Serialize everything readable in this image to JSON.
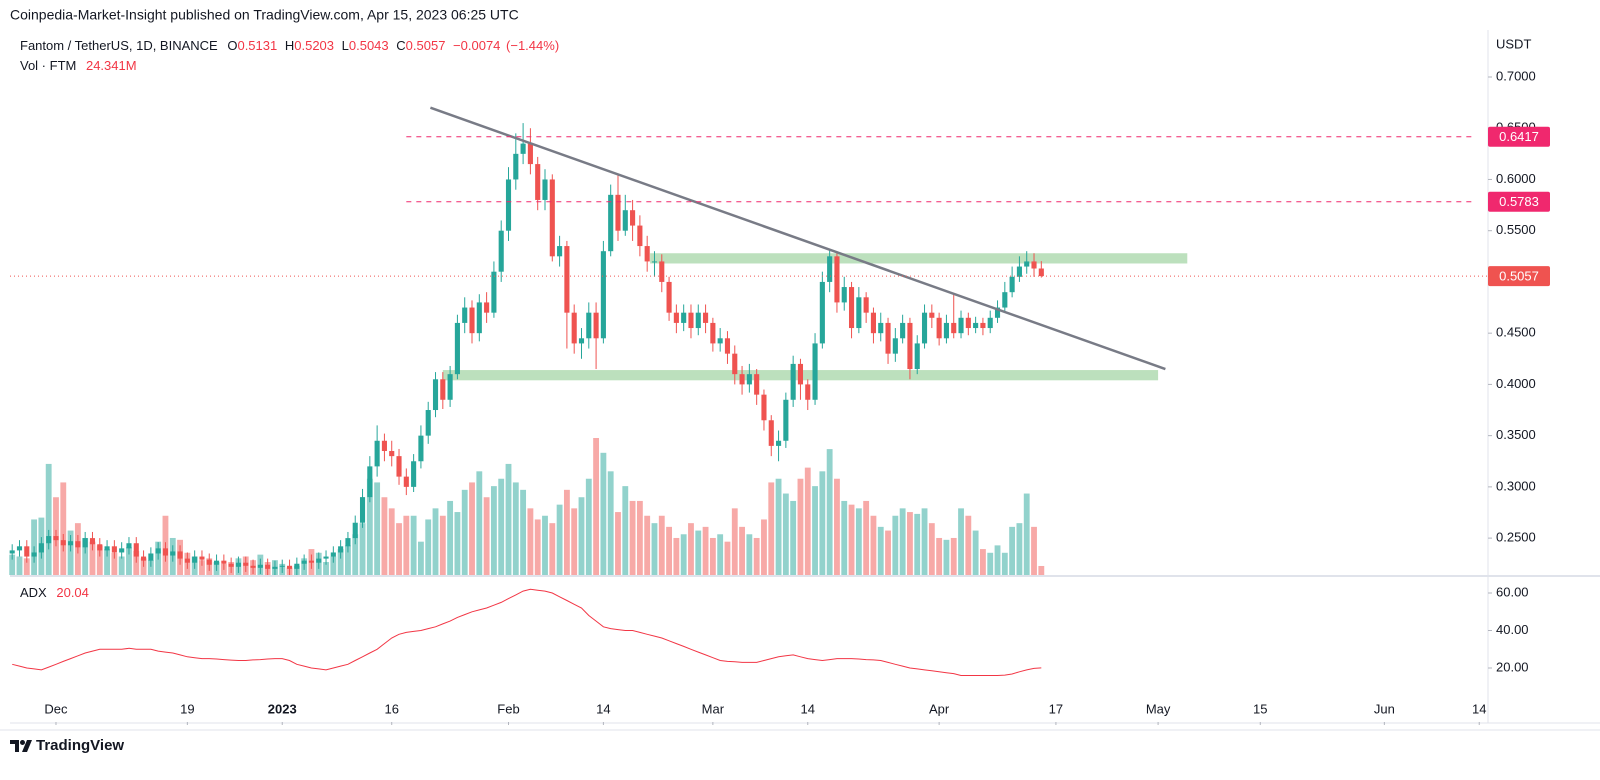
{
  "header": {
    "title": "Coinpedia-Market-Insight published on TradingView.com, Apr 15, 2023 06:25 UTC"
  },
  "chart_data": {
    "type": "candlestick",
    "symbol": "Fantom / TetherUS, 1D, BINANCE",
    "legend_labels": {
      "open": "O",
      "high": "H",
      "low": "L",
      "close": "C"
    },
    "change": {
      "value": -0.0074,
      "label": "−0.0074"
    },
    "change_pct": {
      "value": -1.44,
      "label": "(−1.44%)"
    },
    "currency": "USDT",
    "up_color": "#26a69a",
    "down_color": "#ef5350",
    "grid": false,
    "open": [
      0.235,
      0.238,
      0.242,
      0.232,
      0.236,
      0.245,
      0.252,
      0.248,
      0.243,
      0.247,
      0.241,
      0.25,
      0.244,
      0.238,
      0.242,
      0.236,
      0.24,
      0.245,
      0.232,
      0.228,
      0.235,
      0.24,
      0.233,
      0.237,
      0.23,
      0.226,
      0.232,
      0.229,
      0.224,
      0.228,
      0.225,
      0.222,
      0.226,
      0.223,
      0.221,
      0.224,
      0.22,
      0.222,
      0.223,
      0.22,
      0.225,
      0.228,
      0.226,
      0.23,
      0.232,
      0.236,
      0.242,
      0.25,
      0.265,
      0.29,
      0.32,
      0.345,
      0.335,
      0.33,
      0.31,
      0.3,
      0.325,
      0.35,
      0.375,
      0.405,
      0.385,
      0.41,
      0.46,
      0.475,
      0.45,
      0.48,
      0.47,
      0.51,
      0.55,
      0.6,
      0.625,
      0.635,
      0.615,
      0.58,
      0.6,
      0.525,
      0.535,
      0.47,
      0.44,
      0.445,
      0.47,
      0.445,
      0.53,
      0.585,
      0.55,
      0.57,
      0.555,
      0.535,
      0.52,
      0.52,
      0.5,
      0.47,
      0.46,
      0.47,
      0.455,
      0.47,
      0.46,
      0.44,
      0.445,
      0.43,
      0.41,
      0.4,
      0.41,
      0.39,
      0.365,
      0.34,
      0.345,
      0.385,
      0.42,
      0.4,
      0.385,
      0.44,
      0.5,
      0.525,
      0.48,
      0.495,
      0.455,
      0.485,
      0.47,
      0.45,
      0.46,
      0.43,
      0.445,
      0.46,
      0.415,
      0.44,
      0.47,
      0.465,
      0.445,
      0.46,
      0.45,
      0.465,
      0.455,
      0.46,
      0.455,
      0.465,
      0.475,
      0.49,
      0.505,
      0.515,
      0.52,
      0.5131
    ],
    "high": [
      0.244,
      0.248,
      0.248,
      0.242,
      0.251,
      0.258,
      0.258,
      0.254,
      0.253,
      0.253,
      0.256,
      0.256,
      0.25,
      0.248,
      0.248,
      0.246,
      0.251,
      0.251,
      0.238,
      0.241,
      0.246,
      0.246,
      0.243,
      0.243,
      0.236,
      0.238,
      0.238,
      0.235,
      0.234,
      0.234,
      0.231,
      0.232,
      0.232,
      0.229,
      0.23,
      0.23,
      0.228,
      0.229,
      0.229,
      0.231,
      0.234,
      0.234,
      0.236,
      0.238,
      0.242,
      0.248,
      0.256,
      0.272,
      0.298,
      0.33,
      0.36,
      0.352,
      0.345,
      0.337,
      0.318,
      0.332,
      0.36,
      0.383,
      0.412,
      0.412,
      0.418,
      0.468,
      0.485,
      0.482,
      0.488,
      0.49,
      0.52,
      0.56,
      0.612,
      0.645,
      0.655,
      0.65,
      0.622,
      0.61,
      0.605,
      0.545,
      0.54,
      0.478,
      0.455,
      0.48,
      0.48,
      0.54,
      0.595,
      0.605,
      0.585,
      0.58,
      0.565,
      0.545,
      0.53,
      0.527,
      0.505,
      0.478,
      0.478,
      0.478,
      0.478,
      0.478,
      0.465,
      0.455,
      0.452,
      0.438,
      0.418,
      0.42,
      0.415,
      0.395,
      0.37,
      0.355,
      0.392,
      0.428,
      0.425,
      0.405,
      0.45,
      0.51,
      0.532,
      0.53,
      0.505,
      0.5,
      0.495,
      0.49,
      0.475,
      0.47,
      0.465,
      0.455,
      0.468,
      0.465,
      0.448,
      0.478,
      0.478,
      0.47,
      0.468,
      0.488,
      0.472,
      0.47,
      0.466,
      0.465,
      0.472,
      0.482,
      0.5,
      0.515,
      0.525,
      0.53,
      0.528,
      0.5203
    ],
    "low": [
      0.229,
      0.232,
      0.226,
      0.226,
      0.23,
      0.239,
      0.242,
      0.237,
      0.237,
      0.235,
      0.235,
      0.238,
      0.232,
      0.232,
      0.23,
      0.23,
      0.234,
      0.226,
      0.222,
      0.222,
      0.229,
      0.227,
      0.227,
      0.224,
      0.22,
      0.22,
      0.223,
      0.218,
      0.218,
      0.219,
      0.216,
      0.216,
      0.217,
      0.215,
      0.215,
      0.214,
      0.214,
      0.216,
      0.214,
      0.214,
      0.219,
      0.22,
      0.22,
      0.224,
      0.226,
      0.23,
      0.236,
      0.244,
      0.26,
      0.285,
      0.31,
      0.325,
      0.32,
      0.302,
      0.292,
      0.295,
      0.318,
      0.342,
      0.368,
      0.376,
      0.378,
      0.405,
      0.45,
      0.44,
      0.442,
      0.46,
      0.465,
      0.5,
      0.54,
      0.59,
      0.615,
      0.605,
      0.57,
      0.57,
      0.52,
      0.515,
      0.435,
      0.43,
      0.425,
      0.435,
      0.415,
      0.44,
      0.525,
      0.54,
      0.545,
      0.54,
      0.525,
      0.51,
      0.505,
      0.49,
      0.462,
      0.45,
      0.452,
      0.445,
      0.448,
      0.45,
      0.432,
      0.432,
      0.42,
      0.4,
      0.39,
      0.392,
      0.38,
      0.355,
      0.33,
      0.325,
      0.338,
      0.378,
      0.385,
      0.375,
      0.38,
      0.435,
      0.49,
      0.47,
      0.472,
      0.445,
      0.45,
      0.46,
      0.44,
      0.442,
      0.42,
      0.422,
      0.44,
      0.405,
      0.41,
      0.435,
      0.455,
      0.438,
      0.44,
      0.445,
      0.445,
      0.448,
      0.45,
      0.448,
      0.45,
      0.46,
      0.47,
      0.485,
      0.5,
      0.508,
      0.505,
      0.5043
    ],
    "close": [
      0.238,
      0.242,
      0.232,
      0.236,
      0.245,
      0.252,
      0.248,
      0.243,
      0.247,
      0.241,
      0.25,
      0.244,
      0.238,
      0.242,
      0.236,
      0.24,
      0.245,
      0.232,
      0.228,
      0.235,
      0.24,
      0.233,
      0.237,
      0.23,
      0.226,
      0.232,
      0.229,
      0.224,
      0.228,
      0.225,
      0.222,
      0.226,
      0.223,
      0.221,
      0.224,
      0.22,
      0.222,
      0.223,
      0.22,
      0.225,
      0.228,
      0.226,
      0.23,
      0.232,
      0.236,
      0.242,
      0.25,
      0.265,
      0.29,
      0.32,
      0.345,
      0.335,
      0.33,
      0.31,
      0.3,
      0.325,
      0.35,
      0.375,
      0.405,
      0.385,
      0.41,
      0.46,
      0.475,
      0.45,
      0.48,
      0.47,
      0.51,
      0.55,
      0.6,
      0.625,
      0.635,
      0.615,
      0.58,
      0.6,
      0.525,
      0.535,
      0.47,
      0.44,
      0.445,
      0.47,
      0.445,
      0.53,
      0.585,
      0.55,
      0.57,
      0.555,
      0.535,
      0.52,
      0.52,
      0.5,
      0.47,
      0.46,
      0.47,
      0.455,
      0.47,
      0.46,
      0.44,
      0.445,
      0.43,
      0.41,
      0.4,
      0.41,
      0.39,
      0.365,
      0.34,
      0.345,
      0.385,
      0.42,
      0.4,
      0.385,
      0.44,
      0.5,
      0.525,
      0.48,
      0.495,
      0.455,
      0.485,
      0.47,
      0.45,
      0.46,
      0.43,
      0.445,
      0.46,
      0.415,
      0.44,
      0.47,
      0.465,
      0.445,
      0.46,
      0.45,
      0.465,
      0.455,
      0.46,
      0.455,
      0.465,
      0.475,
      0.49,
      0.505,
      0.515,
      0.52,
      0.5131,
      0.5057
    ],
    "xlim": [
      -0.3,
      202.2
    ],
    "xticks": [
      {
        "value": 6,
        "label": "Dec"
      },
      {
        "value": 24,
        "label": "19"
      },
      {
        "value": 37,
        "label": "2023"
      },
      {
        "value": 52,
        "label": "16"
      },
      {
        "value": 68,
        "label": "Feb"
      },
      {
        "value": 81,
        "label": "14"
      },
      {
        "value": 96,
        "label": "Mar"
      },
      {
        "value": 109,
        "label": "14"
      },
      {
        "value": 127,
        "label": "Apr"
      },
      {
        "value": 143,
        "label": "17"
      },
      {
        "value": 157,
        "label": "May"
      },
      {
        "value": 171,
        "label": "15"
      },
      {
        "value": 188,
        "label": "Jun"
      },
      {
        "value": 201,
        "label": "14"
      }
    ],
    "ylim": [
      0.214,
      0.74
    ],
    "yticks": [
      {
        "value": 0.25,
        "label": "0.2500"
      },
      {
        "value": 0.3,
        "label": "0.3000"
      },
      {
        "value": 0.35,
        "label": "0.3500"
      },
      {
        "value": 0.4,
        "label": "0.4000"
      },
      {
        "value": 0.45,
        "label": "0.4500"
      },
      {
        "value": 0.5,
        "label": "0.5000"
      },
      {
        "value": 0.55,
        "label": "0.5500"
      },
      {
        "value": 0.6,
        "label": "0.6000"
      },
      {
        "value": 0.65,
        "label": "0.6500"
      },
      {
        "value": 0.7,
        "label": "0.7000"
      }
    ],
    "levels": [
      0.6417,
      0.5783
    ],
    "level_color": "#f0286e",
    "zones": [
      {
        "from": 0.518,
        "to": 0.528,
        "start": 87.4,
        "end": 161
      },
      {
        "from": 0.404,
        "to": 0.414,
        "start": 59,
        "end": 157
      }
    ],
    "zone_color": "#a5d6a7",
    "trendline": {
      "x": [
        57.3,
        158
      ],
      "y": [
        0.67,
        0.415
      ],
      "color": "#787b86"
    },
    "volume": {
      "label": "Vol · FTM",
      "last_label": "24.341M",
      "values": [
        55,
        50,
        45,
        150,
        155,
        300,
        210,
        250,
        120,
        140,
        100,
        90,
        80,
        70,
        60,
        50,
        75,
        65,
        45,
        40,
        90,
        160,
        100,
        95,
        60,
        50,
        40,
        45,
        35,
        30,
        35,
        45,
        50,
        40,
        55,
        35,
        40,
        30,
        20,
        25,
        45,
        70,
        60,
        35,
        50,
        70,
        80,
        110,
        140,
        260,
        250,
        210,
        180,
        140,
        160,
        160,
        90,
        150,
        180,
        160,
        200,
        170,
        230,
        250,
        280,
        210,
        240,
        260,
        300,
        250,
        230,
        180,
        150,
        160,
        140,
        190,
        230,
        180,
        210,
        260,
        370,
        330,
        280,
        170,
        240,
        200,
        200,
        160,
        140,
        160,
        130,
        100,
        110,
        140,
        120,
        130,
        100,
        110,
        90,
        180,
        130,
        110,
        100,
        150,
        250,
        260,
        220,
        200,
        260,
        290,
        240,
        280,
        340,
        260,
        200,
        190,
        180,
        200,
        160,
        130,
        120,
        160,
        180,
        170,
        165,
        180,
        140,
        100,
        95,
        100,
        180,
        160,
        120,
        70,
        60,
        80,
        60,
        130,
        140,
        220,
        130,
        24.341
      ]
    },
    "adx": {
      "name": "ADX",
      "color": "#f23645",
      "ylim": [
        -8.8,
        68
      ],
      "yticks": [
        {
          "value": 20,
          "label": "20.00"
        },
        {
          "value": 40,
          "label": "40.00"
        },
        {
          "value": 60,
          "label": "60.00"
        }
      ],
      "values": [
        22,
        21,
        20,
        19.5,
        19,
        20.5,
        22,
        23.5,
        25,
        26.5,
        28,
        29,
        30,
        30,
        30,
        30,
        30.5,
        30,
        30,
        30,
        29,
        28.5,
        28,
        27,
        26,
        25.5,
        25,
        25,
        24.8,
        24.5,
        24.2,
        24,
        24,
        24.3,
        24.5,
        24.8,
        25,
        25,
        24,
        22,
        21,
        20,
        19.5,
        19,
        20,
        21,
        22,
        24,
        26,
        28,
        30,
        33,
        36,
        38,
        39,
        39.5,
        40,
        41,
        42,
        43.5,
        45,
        47,
        48.5,
        50,
        51,
        52,
        53.5,
        55,
        57,
        59,
        61,
        62,
        61.5,
        61,
        60,
        58,
        56,
        54,
        52,
        48,
        45,
        42,
        41,
        40.5,
        40,
        40,
        39,
        38,
        37,
        36,
        34.5,
        33,
        31.5,
        30,
        28.5,
        27,
        25.5,
        24,
        23.5,
        23.3,
        23,
        23,
        23,
        24,
        25,
        26,
        26.5,
        27,
        26,
        25,
        24.5,
        24,
        24.5,
        25,
        25,
        25,
        24.8,
        24.5,
        24.3,
        24,
        23,
        22,
        21,
        20,
        19.5,
        19,
        18.5,
        18,
        17.5,
        17,
        16,
        16,
        16,
        16,
        16,
        16,
        16.2,
        16.8,
        18,
        19,
        19.8,
        20.04
      ]
    }
  },
  "footer": {
    "brand": "TradingView"
  }
}
